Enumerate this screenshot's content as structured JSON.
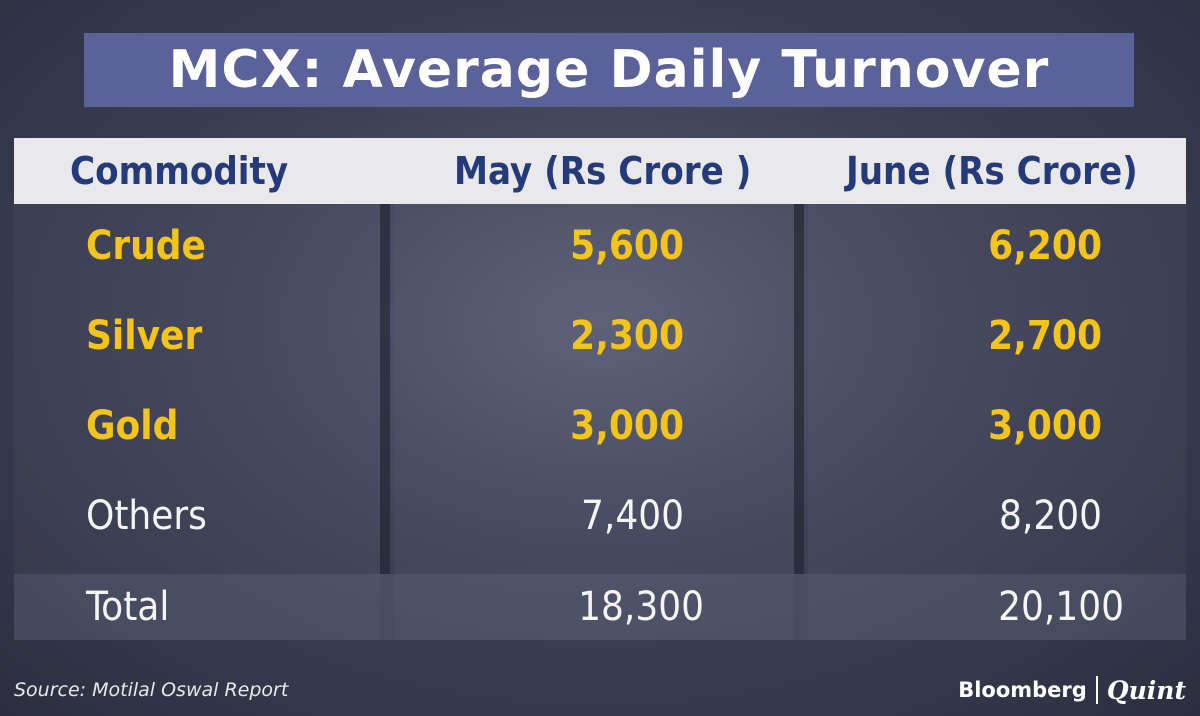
{
  "chart_data": {
    "type": "table",
    "title": "MCX: Average Daily Turnover",
    "columns": [
      "Commodity",
      "May (Rs Crore )",
      "June (Rs Crore)"
    ],
    "rows": [
      {
        "commodity": "Crude",
        "may": "5,600",
        "june": "6,200",
        "highlight": true
      },
      {
        "commodity": "Silver",
        "may": "2,300",
        "june": "2,700",
        "highlight": true
      },
      {
        "commodity": "Gold",
        "may": "3,000",
        "june": "3,000",
        "highlight": true
      },
      {
        "commodity": "Others",
        "may": "7,400",
        "june": "8,200",
        "highlight": false
      }
    ],
    "total": {
      "label": "Total",
      "may": "18,300",
      "june": "20,100"
    },
    "colors": {
      "title_bg": "#5b6199",
      "header_bg": "#e9e9ec",
      "header_text": "#253a79",
      "highlight_text": "#f3c41a",
      "normal_text": "#f4f4f4"
    }
  },
  "footer": {
    "source": "Source: Motilal Oswal Report",
    "brand_primary": "Bloomberg",
    "brand_secondary": "Quint"
  }
}
